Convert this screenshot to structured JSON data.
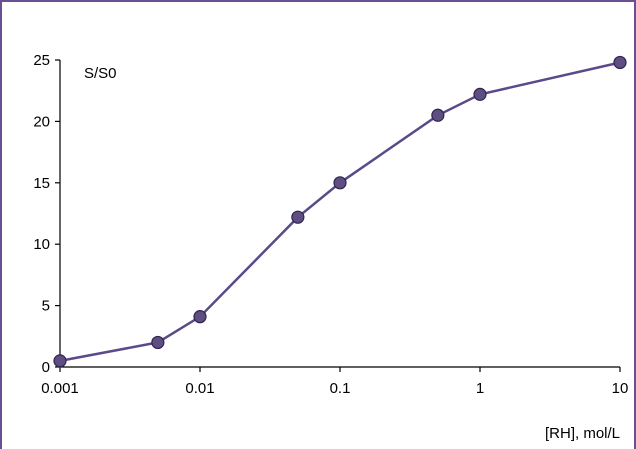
{
  "chart_data": {
    "type": "line",
    "title": "",
    "ylabel": "S/S0",
    "xlabel": "[RH],  mol/L",
    "x_scale": "log",
    "xlim": [
      0.001,
      10
    ],
    "ylim": [
      0,
      25
    ],
    "x_ticks": [
      0.001,
      0.01,
      0.1,
      1,
      10
    ],
    "x_tick_labels": [
      "0.001",
      "0.01",
      "0.1",
      "1",
      "10"
    ],
    "y_ticks": [
      0,
      5,
      10,
      15,
      20,
      25
    ],
    "y_tick_labels": [
      "0",
      "5",
      "10",
      "15",
      "20",
      "25"
    ],
    "grid": false,
    "legend": "none",
    "series": [
      {
        "x": [
          0.001,
          0.005,
          0.01,
          0.05,
          0.1,
          0.5,
          1,
          10
        ],
        "y": [
          0.5,
          2.0,
          4.1,
          12.2,
          15.0,
          20.5,
          22.2,
          24.8
        ]
      }
    ],
    "colors": {
      "line": "#5b4a8a",
      "marker_fill": "#5e4e82",
      "marker_stroke": "#2f2450",
      "frame": "#6b4f95",
      "axis": "#000000"
    }
  }
}
